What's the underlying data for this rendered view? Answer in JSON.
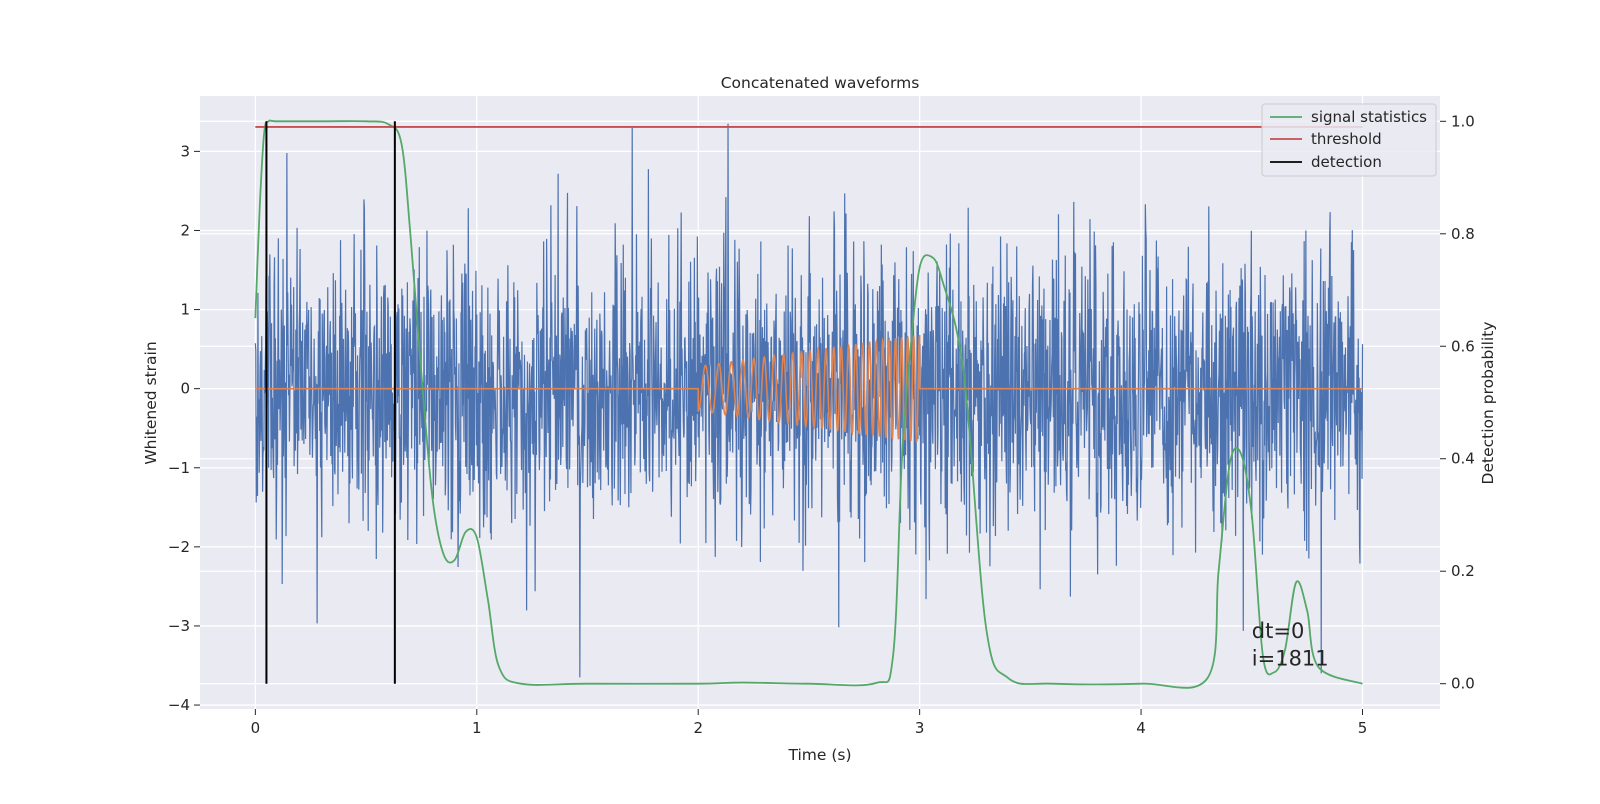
{
  "chart_data": {
    "type": "line",
    "title": "Concatenated waveforms",
    "xlabel": "Time (s)",
    "ylabel": "Whitened strain",
    "y2label": "Detection probability",
    "xlim": [
      -0.25,
      5.35
    ],
    "ylim": [
      -4.05,
      3.7
    ],
    "y2lim": [
      -0.045,
      1.045
    ],
    "x_ticks": [
      0,
      1,
      2,
      3,
      4,
      5
    ],
    "y_ticks": [
      -4,
      -3,
      -2,
      -1,
      0,
      1,
      2,
      3
    ],
    "y2_ticks": [
      0.0,
      0.2,
      0.4,
      0.6,
      0.8,
      1.0
    ],
    "x_tick_labels": [
      "0",
      "1",
      "2",
      "3",
      "4",
      "5"
    ],
    "y_tick_labels": [
      "−4",
      "−3",
      "−2",
      "−1",
      "0",
      "1",
      "2",
      "3"
    ],
    "y2_tick_labels": [
      "0.0",
      "0.2",
      "0.4",
      "0.6",
      "0.8",
      "1.0"
    ],
    "grid": true,
    "legend_position": "top-right",
    "legend": [
      "signal statistics",
      "threshold",
      "detection"
    ],
    "colors": {
      "strain": "#4c72b0",
      "injection": "#dd8452",
      "signal_statistics": "#55a868",
      "threshold": "#c44e52",
      "detection": "#000000",
      "background": "#eaeaf2",
      "grid": "#ffffff"
    },
    "series": [
      {
        "name": "strain",
        "axis": "left",
        "x_range": [
          0,
          5
        ],
        "typical_amplitude": 0.9,
        "peak_values": [
          3.35,
          -3.65
        ]
      },
      {
        "name": "injection",
        "axis": "left",
        "x_range": [
          2,
          3
        ],
        "amplitude_start": 0.28,
        "amplitude_end": 0.68,
        "freq_start_hz": 15,
        "freq_end_hz": 38
      },
      {
        "name": "signal statistics",
        "axis": "right",
        "x": [
          0.0,
          0.02,
          0.04,
          0.06,
          0.1,
          0.3,
          0.5,
          0.6,
          0.66,
          0.7,
          0.75,
          0.8,
          0.85,
          0.9,
          0.95,
          1.0,
          1.05,
          1.1,
          1.2,
          1.5,
          2.0,
          2.2,
          2.5,
          2.8,
          2.88,
          2.92,
          2.96,
          3.0,
          3.05,
          3.1,
          3.2,
          3.3,
          3.4,
          3.6,
          4.0,
          4.3,
          4.35,
          4.4,
          4.45,
          4.5,
          4.55,
          4.6,
          4.65,
          4.7,
          4.75,
          4.8,
          5.0
        ],
        "y": [
          0.65,
          0.85,
          0.98,
          1.0,
          1.0,
          1.0,
          1.0,
          0.995,
          0.96,
          0.8,
          0.55,
          0.33,
          0.23,
          0.22,
          0.27,
          0.26,
          0.15,
          0.03,
          0.0,
          0.0,
          0.0,
          0.002,
          0.0,
          0.001,
          0.05,
          0.4,
          0.6,
          0.74,
          0.76,
          0.72,
          0.55,
          0.1,
          0.01,
          0.0,
          0.0,
          0.01,
          0.2,
          0.39,
          0.41,
          0.3,
          0.05,
          0.02,
          0.06,
          0.18,
          0.13,
          0.03,
          0.0
        ]
      },
      {
        "name": "threshold",
        "axis": "right",
        "x": [
          0,
          5
        ],
        "y": [
          0.99,
          0.99
        ]
      },
      {
        "name": "detection",
        "axis": "right",
        "type": "vlines",
        "x": [
          0.05,
          0.63
        ],
        "y_range": [
          0.0,
          1.0
        ]
      }
    ],
    "annotations": [
      {
        "text": "dt=0",
        "x": 4.5,
        "y": -3.15
      },
      {
        "text": "i=1811",
        "x": 4.5,
        "y": -3.5
      }
    ]
  }
}
